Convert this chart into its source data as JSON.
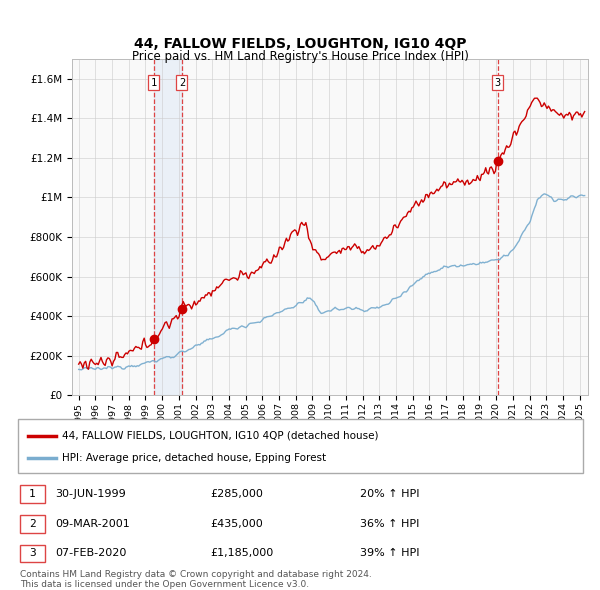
{
  "title": "44, FALLOW FIELDS, LOUGHTON, IG10 4QP",
  "subtitle": "Price paid vs. HM Land Registry's House Price Index (HPI)",
  "ylim": [
    0,
    1700000
  ],
  "yticks": [
    0,
    200000,
    400000,
    600000,
    800000,
    1000000,
    1200000,
    1400000,
    1600000
  ],
  "ytick_labels": [
    "£0",
    "£200K",
    "£400K",
    "£600K",
    "£800K",
    "£1M",
    "£1.2M",
    "£1.4M",
    "£1.6M"
  ],
  "sale_dates": [
    1999.49,
    2001.18,
    2020.09
  ],
  "sale_prices": [
    285000,
    435000,
    1185000
  ],
  "sale_labels": [
    "1",
    "2",
    "3"
  ],
  "legend_red": "44, FALLOW FIELDS, LOUGHTON, IG10 4QP (detached house)",
  "legend_blue": "HPI: Average price, detached house, Epping Forest",
  "table_data": [
    [
      "1",
      "30-JUN-1999",
      "£285,000",
      "20% ↑ HPI"
    ],
    [
      "2",
      "09-MAR-2001",
      "£435,000",
      "36% ↑ HPI"
    ],
    [
      "3",
      "07-FEB-2020",
      "£1,185,000",
      "39% ↑ HPI"
    ]
  ],
  "footnote1": "Contains HM Land Registry data © Crown copyright and database right 2024.",
  "footnote2": "This data is licensed under the Open Government Licence v3.0.",
  "red_color": "#cc0000",
  "blue_color": "#7aadcf",
  "vline_color": "#dd4444",
  "shade_color": "#ddeeff",
  "grid_color": "#cccccc"
}
